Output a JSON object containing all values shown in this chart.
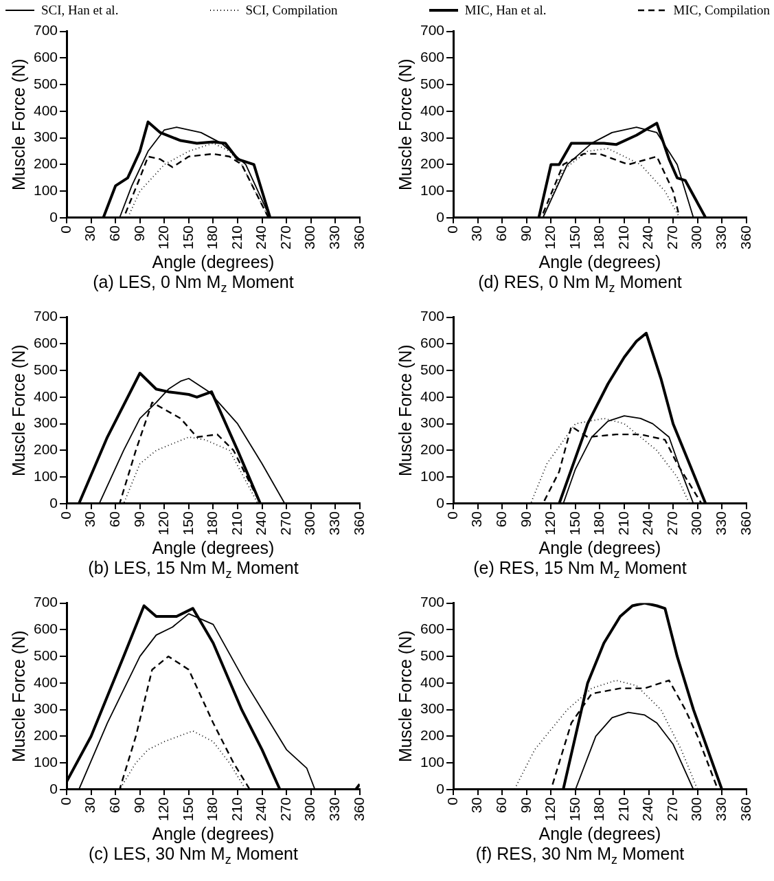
{
  "chart_data": [
    {
      "type": "line",
      "title": "(a) LES, 0 Nm M$_{z}$ Moment",
      "xlabel": "Angle (degrees)",
      "ylabel": "Muscle Force (N)",
      "xlim": [
        0,
        360
      ],
      "ylim": [
        0,
        700
      ],
      "xticks": [
        0,
        30,
        60,
        90,
        120,
        150,
        180,
        210,
        240,
        270,
        300,
        330,
        360
      ],
      "yticks": [
        0,
        100,
        200,
        300,
        400,
        500,
        600,
        700
      ],
      "grid": false,
      "legend": "top",
      "marker": "none",
      "series": [
        {
          "name": "SCI, Han et al.",
          "color": "#000000",
          "line_style": "solid",
          "x": [
            0,
            65,
            80,
            100,
            120,
            135,
            165,
            190,
            220,
            250,
            360
          ],
          "values": [
            0,
            0,
            120,
            250,
            330,
            340,
            320,
            280,
            200,
            0,
            0
          ]
        },
        {
          "name": "SCI, Compilation",
          "color": "#000000",
          "line_style": "dotted",
          "x": [
            0,
            75,
            90,
            120,
            150,
            180,
            200,
            215,
            248,
            360
          ],
          "values": [
            0,
            0,
            100,
            200,
            250,
            280,
            250,
            200,
            0,
            0
          ]
        },
        {
          "name": "MIC, Han et al.",
          "color": "#000000",
          "line_style": "solid",
          "x": [
            0,
            45,
            60,
            75,
            90,
            100,
            115,
            140,
            160,
            180,
            195,
            210,
            230,
            250,
            360
          ],
          "values": [
            0,
            0,
            120,
            150,
            250,
            360,
            320,
            290,
            280,
            285,
            280,
            220,
            200,
            0,
            0
          ]
        },
        {
          "name": "MIC, Compilation",
          "color": "#000000",
          "line_style": "dashed",
          "x": [
            0,
            70,
            90,
            100,
            115,
            130,
            150,
            180,
            200,
            215,
            248,
            360
          ],
          "values": [
            0,
            0,
            150,
            230,
            220,
            190,
            230,
            240,
            230,
            200,
            0,
            0
          ]
        }
      ]
    },
    {
      "type": "line",
      "title": "(d) RES, 0 Nm M$_{z}$ Moment",
      "xlabel": "Angle (degrees)",
      "ylabel": "Muscle Force (N)",
      "xlim": [
        0,
        360
      ],
      "ylim": [
        0,
        700
      ],
      "xticks": [
        0,
        30,
        60,
        90,
        120,
        150,
        180,
        210,
        240,
        270,
        300,
        330,
        360
      ],
      "yticks": [
        0,
        100,
        200,
        300,
        400,
        500,
        600,
        700
      ],
      "grid": false,
      "marker": "none",
      "series": [
        {
          "color": "#000000",
          "line_style": "solid",
          "x": [
            0,
            110,
            140,
            170,
            195,
            225,
            250,
            275,
            295,
            360
          ],
          "values": [
            0,
            0,
            200,
            280,
            320,
            340,
            320,
            200,
            0,
            0
          ]
        },
        {
          "color": "#000000",
          "line_style": "dotted",
          "x": [
            0,
            110,
            135,
            165,
            190,
            230,
            260,
            278,
            360
          ],
          "values": [
            0,
            0,
            180,
            250,
            260,
            200,
            100,
            0,
            0
          ]
        },
        {
          "color": "#000000",
          "line_style": "solid",
          "x": [
            0,
            105,
            120,
            130,
            145,
            185,
            200,
            225,
            250,
            265,
            275,
            285,
            310,
            360
          ],
          "values": [
            0,
            0,
            200,
            200,
            280,
            280,
            275,
            310,
            355,
            220,
            150,
            140,
            0,
            0
          ]
        },
        {
          "color": "#000000",
          "line_style": "dashed",
          "x": [
            0,
            108,
            135,
            160,
            180,
            215,
            250,
            270,
            278,
            360
          ],
          "values": [
            0,
            0,
            200,
            240,
            240,
            200,
            230,
            100,
            0,
            0
          ]
        }
      ]
    },
    {
      "type": "line",
      "title": "(b) LES, 15 Nm M$_{z}$ Moment",
      "xlabel": "Angle (degrees)",
      "ylabel": "Muscle Force (N)",
      "xlim": [
        0,
        360
      ],
      "ylim": [
        0,
        700
      ],
      "xticks": [
        0,
        30,
        60,
        90,
        120,
        150,
        180,
        210,
        240,
        270,
        300,
        330,
        360
      ],
      "yticks": [
        0,
        100,
        200,
        300,
        400,
        500,
        600,
        700
      ],
      "grid": false,
      "marker": "none",
      "series": [
        {
          "color": "#000000",
          "line_style": "solid",
          "x": [
            0,
            40,
            70,
            90,
            110,
            125,
            140,
            150,
            175,
            210,
            240,
            268,
            360
          ],
          "values": [
            0,
            0,
            200,
            320,
            380,
            430,
            460,
            470,
            420,
            300,
            150,
            0,
            0
          ]
        },
        {
          "color": "#000000",
          "line_style": "dotted",
          "x": [
            0,
            70,
            90,
            110,
            150,
            170,
            200,
            235,
            360
          ],
          "values": [
            0,
            0,
            150,
            200,
            250,
            240,
            200,
            0,
            0
          ]
        },
        {
          "color": "#000000",
          "line_style": "solid",
          "x": [
            0,
            15,
            50,
            90,
            110,
            125,
            150,
            160,
            178,
            210,
            238,
            360
          ],
          "values": [
            0,
            0,
            250,
            490,
            430,
            420,
            410,
            400,
            420,
            200,
            0,
            0
          ]
        },
        {
          "color": "#000000",
          "line_style": "dashed",
          "x": [
            0,
            65,
            85,
            105,
            140,
            160,
            185,
            205,
            238,
            360
          ],
          "values": [
            0,
            0,
            200,
            380,
            320,
            250,
            260,
            200,
            0,
            0
          ]
        }
      ]
    },
    {
      "type": "line",
      "title": "(e) RES, 15 Nm M$_{z}$ Moment",
      "xlabel": "Angle (degrees)",
      "ylabel": "Muscle Force (N)",
      "xlim": [
        0,
        360
      ],
      "ylim": [
        0,
        700
      ],
      "xticks": [
        0,
        30,
        60,
        90,
        120,
        150,
        180,
        210,
        240,
        270,
        300,
        330,
        360
      ],
      "yticks": [
        0,
        100,
        200,
        300,
        400,
        500,
        600,
        700
      ],
      "grid": false,
      "marker": "none",
      "series": [
        {
          "color": "#000000",
          "line_style": "solid",
          "x": [
            0,
            135,
            150,
            170,
            190,
            210,
            230,
            245,
            265,
            280,
            295,
            360
          ],
          "values": [
            0,
            0,
            130,
            250,
            310,
            330,
            320,
            300,
            250,
            120,
            0,
            0
          ]
        },
        {
          "color": "#000000",
          "line_style": "dotted",
          "x": [
            0,
            95,
            115,
            150,
            185,
            210,
            250,
            275,
            290,
            360
          ],
          "values": [
            0,
            0,
            150,
            300,
            320,
            300,
            200,
            100,
            0,
            0
          ]
        },
        {
          "color": "#000000",
          "line_style": "solid",
          "x": [
            0,
            130,
            165,
            190,
            210,
            225,
            237,
            255,
            270,
            290,
            310,
            360
          ],
          "values": [
            0,
            0,
            300,
            450,
            550,
            610,
            640,
            470,
            300,
            150,
            0,
            0
          ]
        },
        {
          "color": "#000000",
          "line_style": "dashed",
          "x": [
            0,
            110,
            130,
            145,
            165,
            200,
            230,
            260,
            275,
            305,
            360
          ],
          "values": [
            0,
            0,
            120,
            290,
            250,
            260,
            260,
            240,
            150,
            0,
            0
          ]
        }
      ]
    },
    {
      "type": "line",
      "title": "(c) LES, 30 Nm M$_{z}$ Moment",
      "xlabel": "Angle (degrees)",
      "ylabel": "Muscle Force (N)",
      "xlim": [
        0,
        360
      ],
      "ylim": [
        0,
        700
      ],
      "xticks": [
        0,
        30,
        60,
        90,
        120,
        150,
        180,
        210,
        240,
        270,
        300,
        330,
        360
      ],
      "yticks": [
        0,
        100,
        200,
        300,
        400,
        500,
        600,
        700
      ],
      "grid": false,
      "marker": "none",
      "series": [
        {
          "color": "#000000",
          "line_style": "solid",
          "x": [
            0,
            15,
            50,
            90,
            110,
            130,
            150,
            180,
            220,
            270,
            295,
            305,
            360
          ],
          "values": [
            0,
            0,
            250,
            500,
            580,
            610,
            660,
            620,
            400,
            150,
            80,
            0,
            0
          ]
        },
        {
          "color": "#000000",
          "line_style": "dotted",
          "x": [
            0,
            65,
            85,
            100,
            120,
            155,
            180,
            200,
            220,
            360
          ],
          "values": [
            0,
            0,
            100,
            150,
            180,
            220,
            180,
            100,
            0,
            0
          ]
        },
        {
          "color": "#000000",
          "line_style": "solid",
          "x": [
            0,
            30,
            70,
            95,
            110,
            135,
            155,
            180,
            215,
            240,
            262,
            355,
            360
          ],
          "values": [
            30,
            200,
            500,
            690,
            650,
            650,
            680,
            550,
            300,
            150,
            0,
            0,
            20
          ]
        },
        {
          "color": "#000000",
          "line_style": "dashed",
          "x": [
            0,
            65,
            85,
            105,
            125,
            150,
            180,
            205,
            225,
            360
          ],
          "values": [
            0,
            0,
            200,
            450,
            500,
            450,
            250,
            100,
            0,
            0
          ]
        }
      ]
    },
    {
      "type": "line",
      "title": "(f) RES, 30 Nm M$_{z}$ Moment",
      "xlabel": "Angle (degrees)",
      "ylabel": "Muscle Force (N)",
      "xlim": [
        0,
        360
      ],
      "ylim": [
        0,
        700
      ],
      "xticks": [
        0,
        30,
        60,
        90,
        120,
        150,
        180,
        210,
        240,
        270,
        300,
        330,
        360
      ],
      "yticks": [
        0,
        100,
        200,
        300,
        400,
        500,
        600,
        700
      ],
      "grid": false,
      "marker": "none",
      "series": [
        {
          "color": "#000000",
          "line_style": "solid",
          "x": [
            0,
            150,
            175,
            195,
            215,
            235,
            250,
            270,
            295,
            360
          ],
          "values": [
            0,
            0,
            200,
            270,
            290,
            280,
            250,
            170,
            0,
            0
          ]
        },
        {
          "color": "#000000",
          "line_style": "dotted",
          "x": [
            0,
            75,
            100,
            140,
            170,
            200,
            225,
            255,
            280,
            300,
            360
          ],
          "values": [
            0,
            0,
            150,
            300,
            380,
            410,
            390,
            300,
            150,
            0,
            0
          ]
        },
        {
          "color": "#000000",
          "line_style": "solid",
          "x": [
            0,
            135,
            165,
            185,
            205,
            220,
            235,
            250,
            260,
            275,
            295,
            330,
            360
          ],
          "values": [
            0,
            0,
            400,
            550,
            650,
            690,
            700,
            690,
            680,
            500,
            300,
            0,
            0
          ]
        },
        {
          "color": "#000000",
          "line_style": "dashed",
          "x": [
            0,
            120,
            145,
            170,
            205,
            235,
            265,
            285,
            300,
            325,
            360
          ],
          "values": [
            0,
            0,
            250,
            360,
            380,
            380,
            410,
            300,
            200,
            0,
            0
          ]
        }
      ]
    }
  ]
}
